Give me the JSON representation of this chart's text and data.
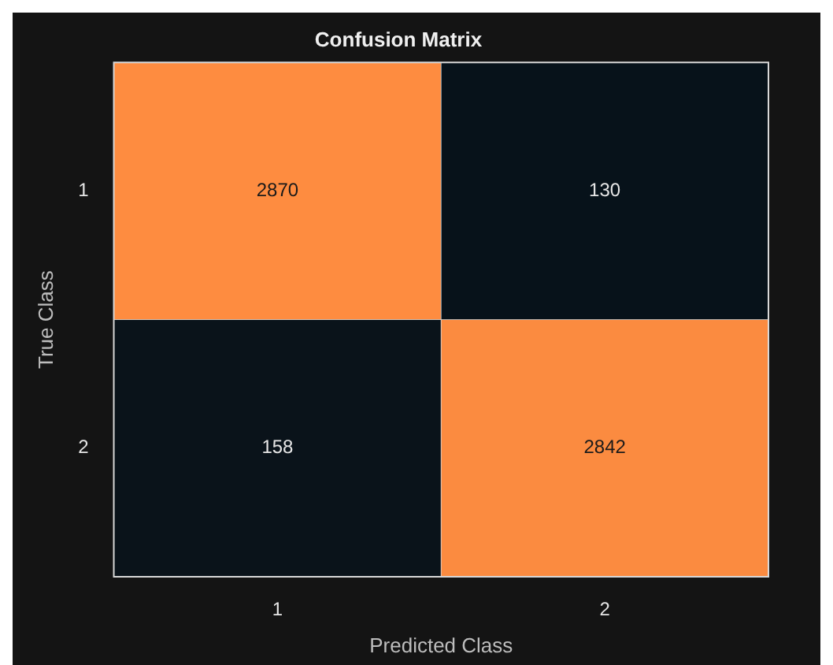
{
  "chart_data": {
    "type": "heatmap",
    "title": "Confusion Matrix",
    "xlabel": "Predicted Class",
    "ylabel": "True Class",
    "categories": [
      "1",
      "2"
    ],
    "y_categories": [
      "1",
      "2"
    ],
    "cells": [
      [
        2870,
        130
      ],
      [
        158,
        2842
      ]
    ],
    "colors": [
      "#07121a",
      "#fe8c40"
    ],
    "data_labels": true
  }
}
